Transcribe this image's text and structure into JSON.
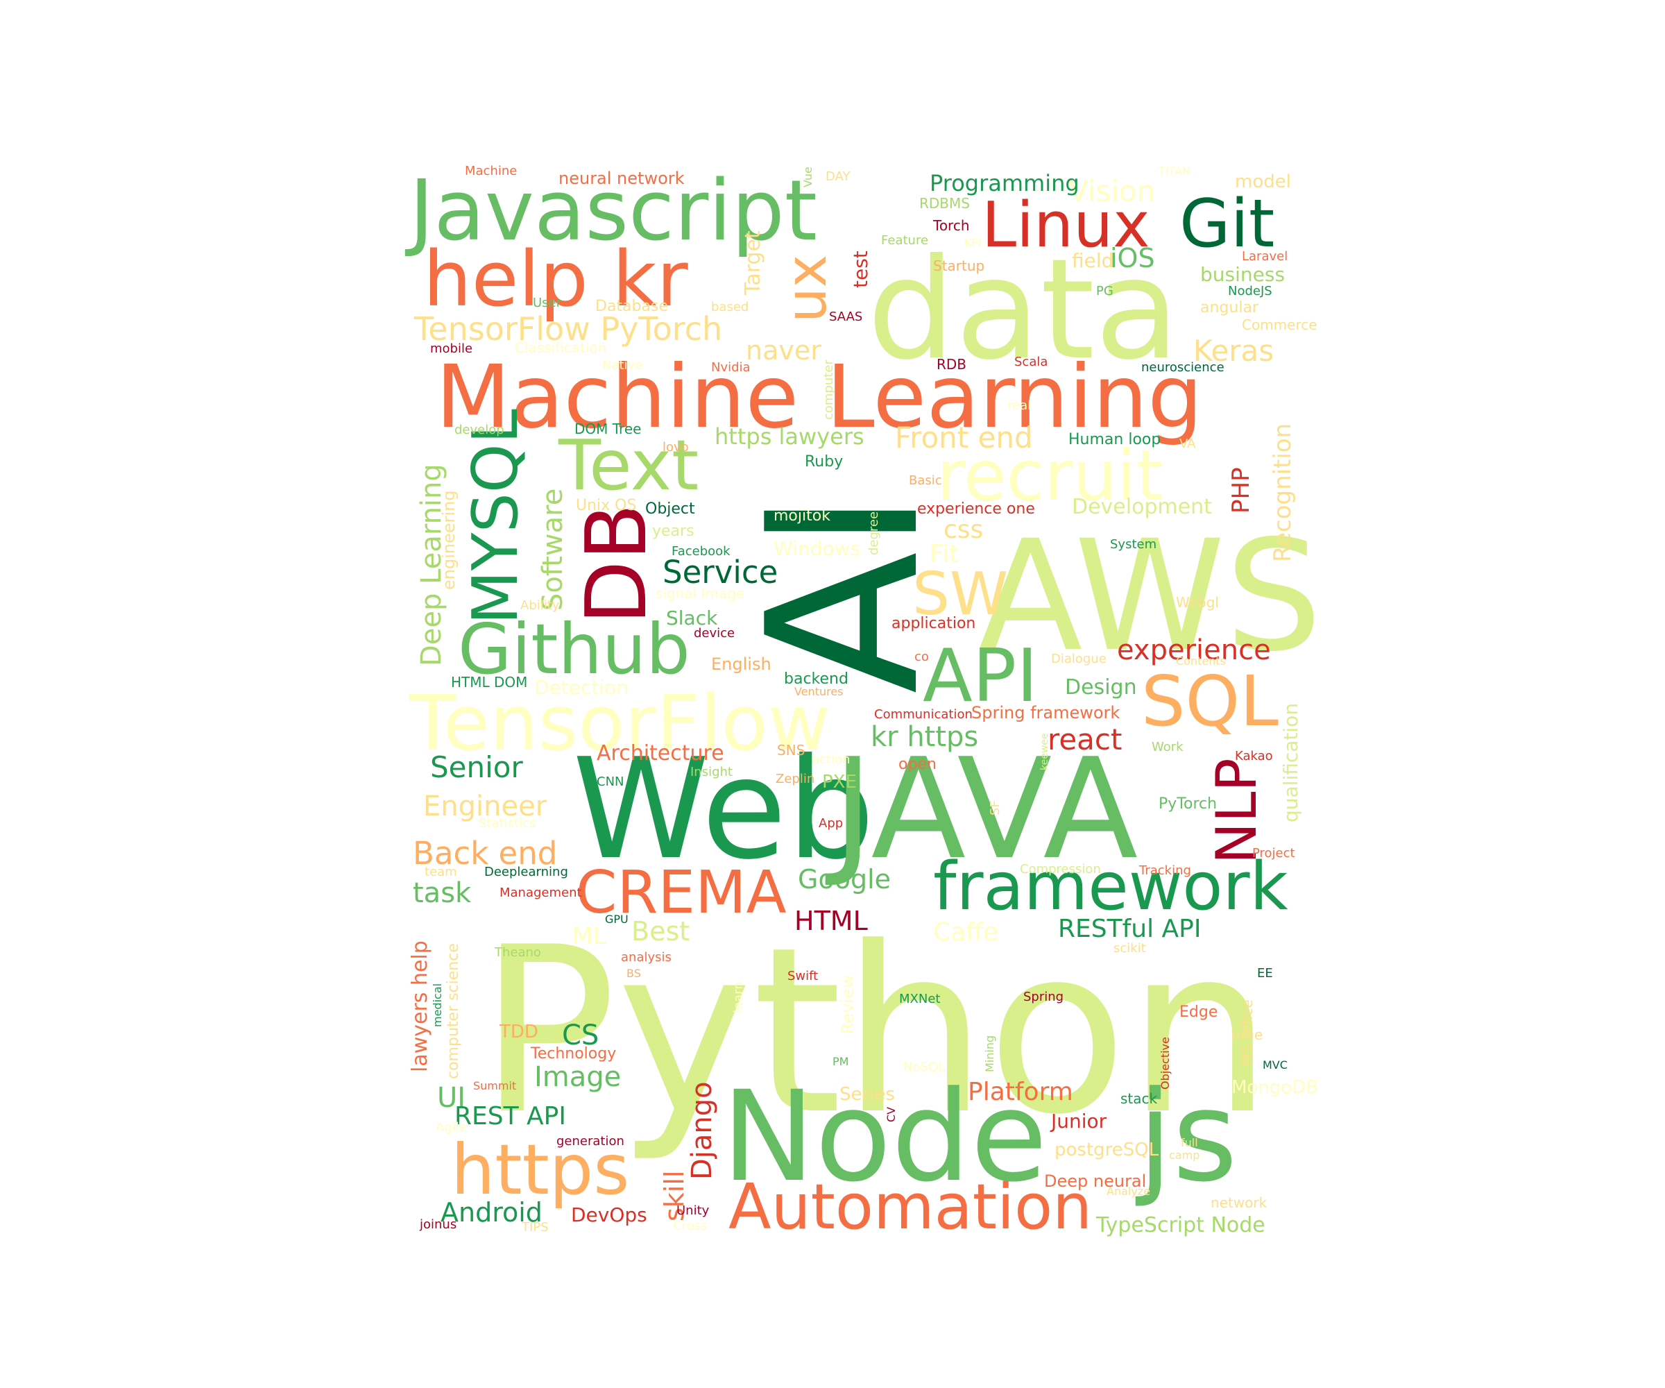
{
  "colors": {
    "dark_green": "#006837",
    "green": "#1a9850",
    "mid_green": "#66bd63",
    "light_green": "#a6d96a",
    "pale_green": "#d9ef8b",
    "cream": "#ffffbf",
    "pale_orange": "#fee08b",
    "light_orange": "#fdae61",
    "orange": "#f46d43",
    "red": "#d73027",
    "dark_red": "#a50026"
  },
  "words": [
    {
      "text": "Python",
      "color": "#d9ef8b"
    },
    {
      "text": "AI",
      "color": "#006837"
    },
    {
      "text": "Web",
      "color": "#1a9850"
    },
    {
      "text": "JAVA",
      "color": "#66bd63"
    },
    {
      "text": "AWS",
      "color": "#d9ef8b"
    },
    {
      "text": "data",
      "color": "#d9ef8b"
    },
    {
      "text": "Node",
      "color": "#66bd63"
    },
    {
      "text": "js",
      "color": "#66bd63"
    },
    {
      "text": "Javascript",
      "color": "#66bd63"
    },
    {
      "text": "Machine Learning",
      "color": "#f46d43"
    },
    {
      "text": "help kr",
      "color": "#f46d43"
    },
    {
      "text": "Linux",
      "color": "#d73027"
    },
    {
      "text": "Git",
      "color": "#006837"
    },
    {
      "text": "TensorFlow",
      "color": "#ffffbf"
    },
    {
      "text": "Github",
      "color": "#66bd63"
    },
    {
      "text": "DB",
      "color": "#a50026"
    },
    {
      "text": "MYSQL",
      "color": "#1a9850"
    },
    {
      "text": "API",
      "color": "#66bd63"
    },
    {
      "text": "SQL",
      "color": "#fdae61"
    },
    {
      "text": "Text",
      "color": "#a6d96a"
    },
    {
      "text": "recruit",
      "color": "#ffffbf"
    },
    {
      "text": "framework",
      "color": "#1a9850"
    },
    {
      "text": "CREMA",
      "color": "#f46d43"
    },
    {
      "text": "Automation",
      "color": "#f46d43"
    },
    {
      "text": "https",
      "color": "#fdae61"
    },
    {
      "text": "NLP",
      "color": "#a50026"
    },
    {
      "text": "SW",
      "color": "#fee08b"
    },
    {
      "text": "ux",
      "color": "#fdae61"
    },
    {
      "text": "TensorFlow PyTorch",
      "color": "#fee08b"
    },
    {
      "text": "Vision",
      "color": "#ffffbf"
    },
    {
      "text": "Programming",
      "color": "#1a9850"
    },
    {
      "text": "Keras",
      "color": "#fee08b"
    },
    {
      "text": "Front end",
      "color": "#fee08b"
    },
    {
      "text": "https lawyers",
      "color": "#a6d96a"
    },
    {
      "text": "naver",
      "color": "#fee08b"
    },
    {
      "text": "Service",
      "color": "#006837"
    },
    {
      "text": "Software",
      "color": "#a6d96a"
    },
    {
      "text": "Deep Learning",
      "color": "#a6d96a"
    },
    {
      "text": "experience",
      "color": "#d73027"
    },
    {
      "text": "react",
      "color": "#d73027"
    },
    {
      "text": "kr https",
      "color": "#66bd63"
    },
    {
      "text": "Senior",
      "color": "#1a9850"
    },
    {
      "text": "Engineer",
      "color": "#fee08b"
    },
    {
      "text": "Back end",
      "color": "#fdae61"
    },
    {
      "text": "task",
      "color": "#66bd63"
    },
    {
      "text": "Google",
      "color": "#66bd63"
    },
    {
      "text": "HTML",
      "color": "#a50026"
    },
    {
      "text": "RESTful API",
      "color": "#1a9850"
    },
    {
      "text": "Best",
      "color": "#d9ef8b"
    },
    {
      "text": "Caffe",
      "color": "#ffffbf"
    },
    {
      "text": "Architecture",
      "color": "#f46d43"
    },
    {
      "text": "PXE",
      "color": "#a6d96a"
    },
    {
      "text": "Recognition",
      "color": "#fee08b"
    },
    {
      "text": "PHP",
      "color": "#d73027"
    },
    {
      "text": "Development",
      "color": "#d9ef8b"
    },
    {
      "text": "iOS",
      "color": "#66bd63"
    },
    {
      "text": "business",
      "color": "#a6d96a"
    },
    {
      "text": "model",
      "color": "#fee08b"
    },
    {
      "text": "field",
      "color": "#fee08b"
    },
    {
      "text": "Target",
      "color": "#fee08b"
    },
    {
      "text": "test",
      "color": "#d73027"
    },
    {
      "text": "neural network",
      "color": "#f46d43"
    },
    {
      "text": "css",
      "color": "#fee08b"
    },
    {
      "text": "Fit",
      "color": "#ffffbf"
    },
    {
      "text": "Windows",
      "color": "#ffffbf"
    },
    {
      "text": "Slack",
      "color": "#66bd63"
    },
    {
      "text": "Design",
      "color": "#66bd63"
    },
    {
      "text": "Spring framework",
      "color": "#f46d43"
    },
    {
      "text": "backend",
      "color": "#1a9850"
    },
    {
      "text": "English",
      "color": "#fdae61"
    },
    {
      "text": "application",
      "color": "#d73027"
    },
    {
      "text": "engineering",
      "color": "#fee08b"
    },
    {
      "text": "qualification",
      "color": "#d9ef8b"
    },
    {
      "text": "PyTorch",
      "color": "#66bd63"
    },
    {
      "text": "Django",
      "color": "#d73027"
    },
    {
      "text": "skill",
      "color": "#f46d43"
    },
    {
      "text": "CS",
      "color": "#1a9850"
    },
    {
      "text": "Image",
      "color": "#66bd63"
    },
    {
      "text": "UI",
      "color": "#66bd63"
    },
    {
      "text": "REST API",
      "color": "#1a9850"
    },
    {
      "text": "Android",
      "color": "#1a9850"
    },
    {
      "text": "DevOps",
      "color": "#d73027"
    },
    {
      "text": "TypeScript Node",
      "color": "#a6d96a"
    },
    {
      "text": "Platform",
      "color": "#f46d43"
    },
    {
      "text": "Junior",
      "color": "#d73027"
    },
    {
      "text": "postgreSQL",
      "color": "#fee08b"
    },
    {
      "text": "Deep neural",
      "color": "#f46d43"
    },
    {
      "text": "MongoDB",
      "color": "#ffffbf"
    },
    {
      "text": "Series",
      "color": "#fee08b"
    },
    {
      "text": "lawyers help",
      "color": "#f46d43"
    },
    {
      "text": "computer science",
      "color": "#fee08b"
    },
    {
      "text": "TDD",
      "color": "#fdae61"
    },
    {
      "text": "Technology",
      "color": "#f46d43"
    },
    {
      "text": "ML",
      "color": "#ffffbf"
    },
    {
      "text": "Review",
      "color": "#ffffbf"
    },
    {
      "text": "MS Office",
      "color": "#fee08b"
    },
    {
      "text": "Edge",
      "color": "#f46d43"
    },
    {
      "text": "Machine",
      "color": "#f46d43"
    },
    {
      "text": "Vue",
      "color": "#a6d96a"
    },
    {
      "text": "DAY",
      "color": "#fee08b"
    },
    {
      "text": "TITAN",
      "color": "#ffffbf"
    },
    {
      "text": "RDBMS",
      "color": "#a6d96a"
    },
    {
      "text": "Torch",
      "color": "#a50026"
    },
    {
      "text": "Feature",
      "color": "#a6d96a"
    },
    {
      "text": "KPI",
      "color": "#ffffbf"
    },
    {
      "text": "Startup",
      "color": "#fdae61"
    },
    {
      "text": "Laravel",
      "color": "#f46d43"
    },
    {
      "text": "NodeJS",
      "color": "#1a9850"
    },
    {
      "text": "angular",
      "color": "#fee08b"
    },
    {
      "text": "Commerce",
      "color": "#fee08b"
    },
    {
      "text": "PG",
      "color": "#66bd63"
    },
    {
      "text": "User",
      "color": "#66bd63"
    },
    {
      "text": "based",
      "color": "#fee08b"
    },
    {
      "text": "Database",
      "color": "#fee08b"
    },
    {
      "text": "SAAS",
      "color": "#a50026"
    },
    {
      "text": "mobile",
      "color": "#a50026"
    },
    {
      "text": "Classification",
      "color": "#ffffbf"
    },
    {
      "text": "Nvidia",
      "color": "#f46d43"
    },
    {
      "text": "Native",
      "color": "#ffffbf"
    },
    {
      "text": "computer",
      "color": "#d9ef8b"
    },
    {
      "text": "RDB",
      "color": "#a50026"
    },
    {
      "text": "Scala",
      "color": "#d73027"
    },
    {
      "text": "neuroscience",
      "color": "#006837"
    },
    {
      "text": "real",
      "color": "#ffffbf"
    },
    {
      "text": "develop",
      "color": "#a6d96a"
    },
    {
      "text": "DOM Tree",
      "color": "#1a9850"
    },
    {
      "text": "lovo",
      "color": "#fdae61"
    },
    {
      "text": "Human loop",
      "color": "#1a9850"
    },
    {
      "text": "VA",
      "color": "#fee08b"
    },
    {
      "text": "Ruby",
      "color": "#1a9850"
    },
    {
      "text": "Basic",
      "color": "#fdae61"
    },
    {
      "text": "Unix OS",
      "color": "#fee08b"
    },
    {
      "text": "Object",
      "color": "#006837"
    },
    {
      "text": "mojitok",
      "color": "#ffffbf"
    },
    {
      "text": "degree",
      "color": "#d9ef8b"
    },
    {
      "text": "experience one",
      "color": "#d73027"
    },
    {
      "text": "System",
      "color": "#1a9850"
    },
    {
      "text": "years",
      "color": "#d9ef8b"
    },
    {
      "text": "Facebook",
      "color": "#1a9850"
    },
    {
      "text": "signal Image",
      "color": "#ffffbf"
    },
    {
      "text": "Ability",
      "color": "#fee08b"
    },
    {
      "text": "Webgl",
      "color": "#fee08b"
    },
    {
      "text": "device",
      "color": "#a50026"
    },
    {
      "text": "co",
      "color": "#f46d43"
    },
    {
      "text": "Dialogue",
      "color": "#fee08b"
    },
    {
      "text": "Contents",
      "color": "#fee08b"
    },
    {
      "text": "Detection",
      "color": "#ffffbf"
    },
    {
      "text": "HTML DOM",
      "color": "#1a9850"
    },
    {
      "text": "Ventures",
      "color": "#fdae61"
    },
    {
      "text": "Communication",
      "color": "#d73027"
    },
    {
      "text": "Work",
      "color": "#a6d96a"
    },
    {
      "text": "keewee",
      "color": "#d9ef8b"
    },
    {
      "text": "SNS",
      "color": "#fdae61"
    },
    {
      "text": "action",
      "color": "#ffffbf"
    },
    {
      "text": "open",
      "color": "#f46d43"
    },
    {
      "text": "Insight",
      "color": "#a6d96a"
    },
    {
      "text": "Kakao",
      "color": "#d73027"
    },
    {
      "text": "Zeplin",
      "color": "#fdae61"
    },
    {
      "text": "CNN",
      "color": "#1a9850"
    },
    {
      "text": "SF",
      "color": "#fee08b"
    },
    {
      "text": "Statistics",
      "color": "#ffffbf"
    },
    {
      "text": "App",
      "color": "#d73027"
    },
    {
      "text": "Project",
      "color": "#f46d43"
    },
    {
      "text": "Compression",
      "color": "#d9ef8b"
    },
    {
      "text": "Tracking",
      "color": "#f46d43"
    },
    {
      "text": "team",
      "color": "#fee08b"
    },
    {
      "text": "Deeplearning",
      "color": "#006837"
    },
    {
      "text": "Management",
      "color": "#d73027"
    },
    {
      "text": "GPU",
      "color": "#006837"
    },
    {
      "text": "Theano",
      "color": "#a6d96a"
    },
    {
      "text": "analysis",
      "color": "#f46d43"
    },
    {
      "text": "BS",
      "color": "#fdae61"
    },
    {
      "text": "Swift",
      "color": "#d73027"
    },
    {
      "text": "learn",
      "color": "#ffffbf"
    },
    {
      "text": "scikit",
      "color": "#fee08b"
    },
    {
      "text": "EE",
      "color": "#006837"
    },
    {
      "text": "medical",
      "color": "#1a9850"
    },
    {
      "text": "MXNet",
      "color": "#1a9850"
    },
    {
      "text": "Spring",
      "color": "#a50026"
    },
    {
      "text": "Mining",
      "color": "#a6d96a"
    },
    {
      "text": "Objective",
      "color": "#d73027"
    },
    {
      "text": "time",
      "color": "#fee08b"
    },
    {
      "text": "PM",
      "color": "#66bd63"
    },
    {
      "text": "NoSQL",
      "color": "#ffffbf"
    },
    {
      "text": "MVC",
      "color": "#006837"
    },
    {
      "text": "Summit",
      "color": "#f46d43"
    },
    {
      "text": "CV",
      "color": "#a50026"
    },
    {
      "text": "stack",
      "color": "#1a9850"
    },
    {
      "text": "Agile",
      "color": "#ffffbf"
    },
    {
      "text": "generation",
      "color": "#a50026"
    },
    {
      "text": "full",
      "color": "#fee08b"
    },
    {
      "text": "camp",
      "color": "#fee08b"
    },
    {
      "text": "Analyze",
      "color": "#fee08b"
    },
    {
      "text": "network",
      "color": "#fee08b"
    },
    {
      "text": "Unity",
      "color": "#a50026"
    },
    {
      "text": "joinus",
      "color": "#a50026"
    },
    {
      "text": "TIPS",
      "color": "#fee08b"
    },
    {
      "text": "Cross",
      "color": "#ffffbf"
    }
  ]
}
